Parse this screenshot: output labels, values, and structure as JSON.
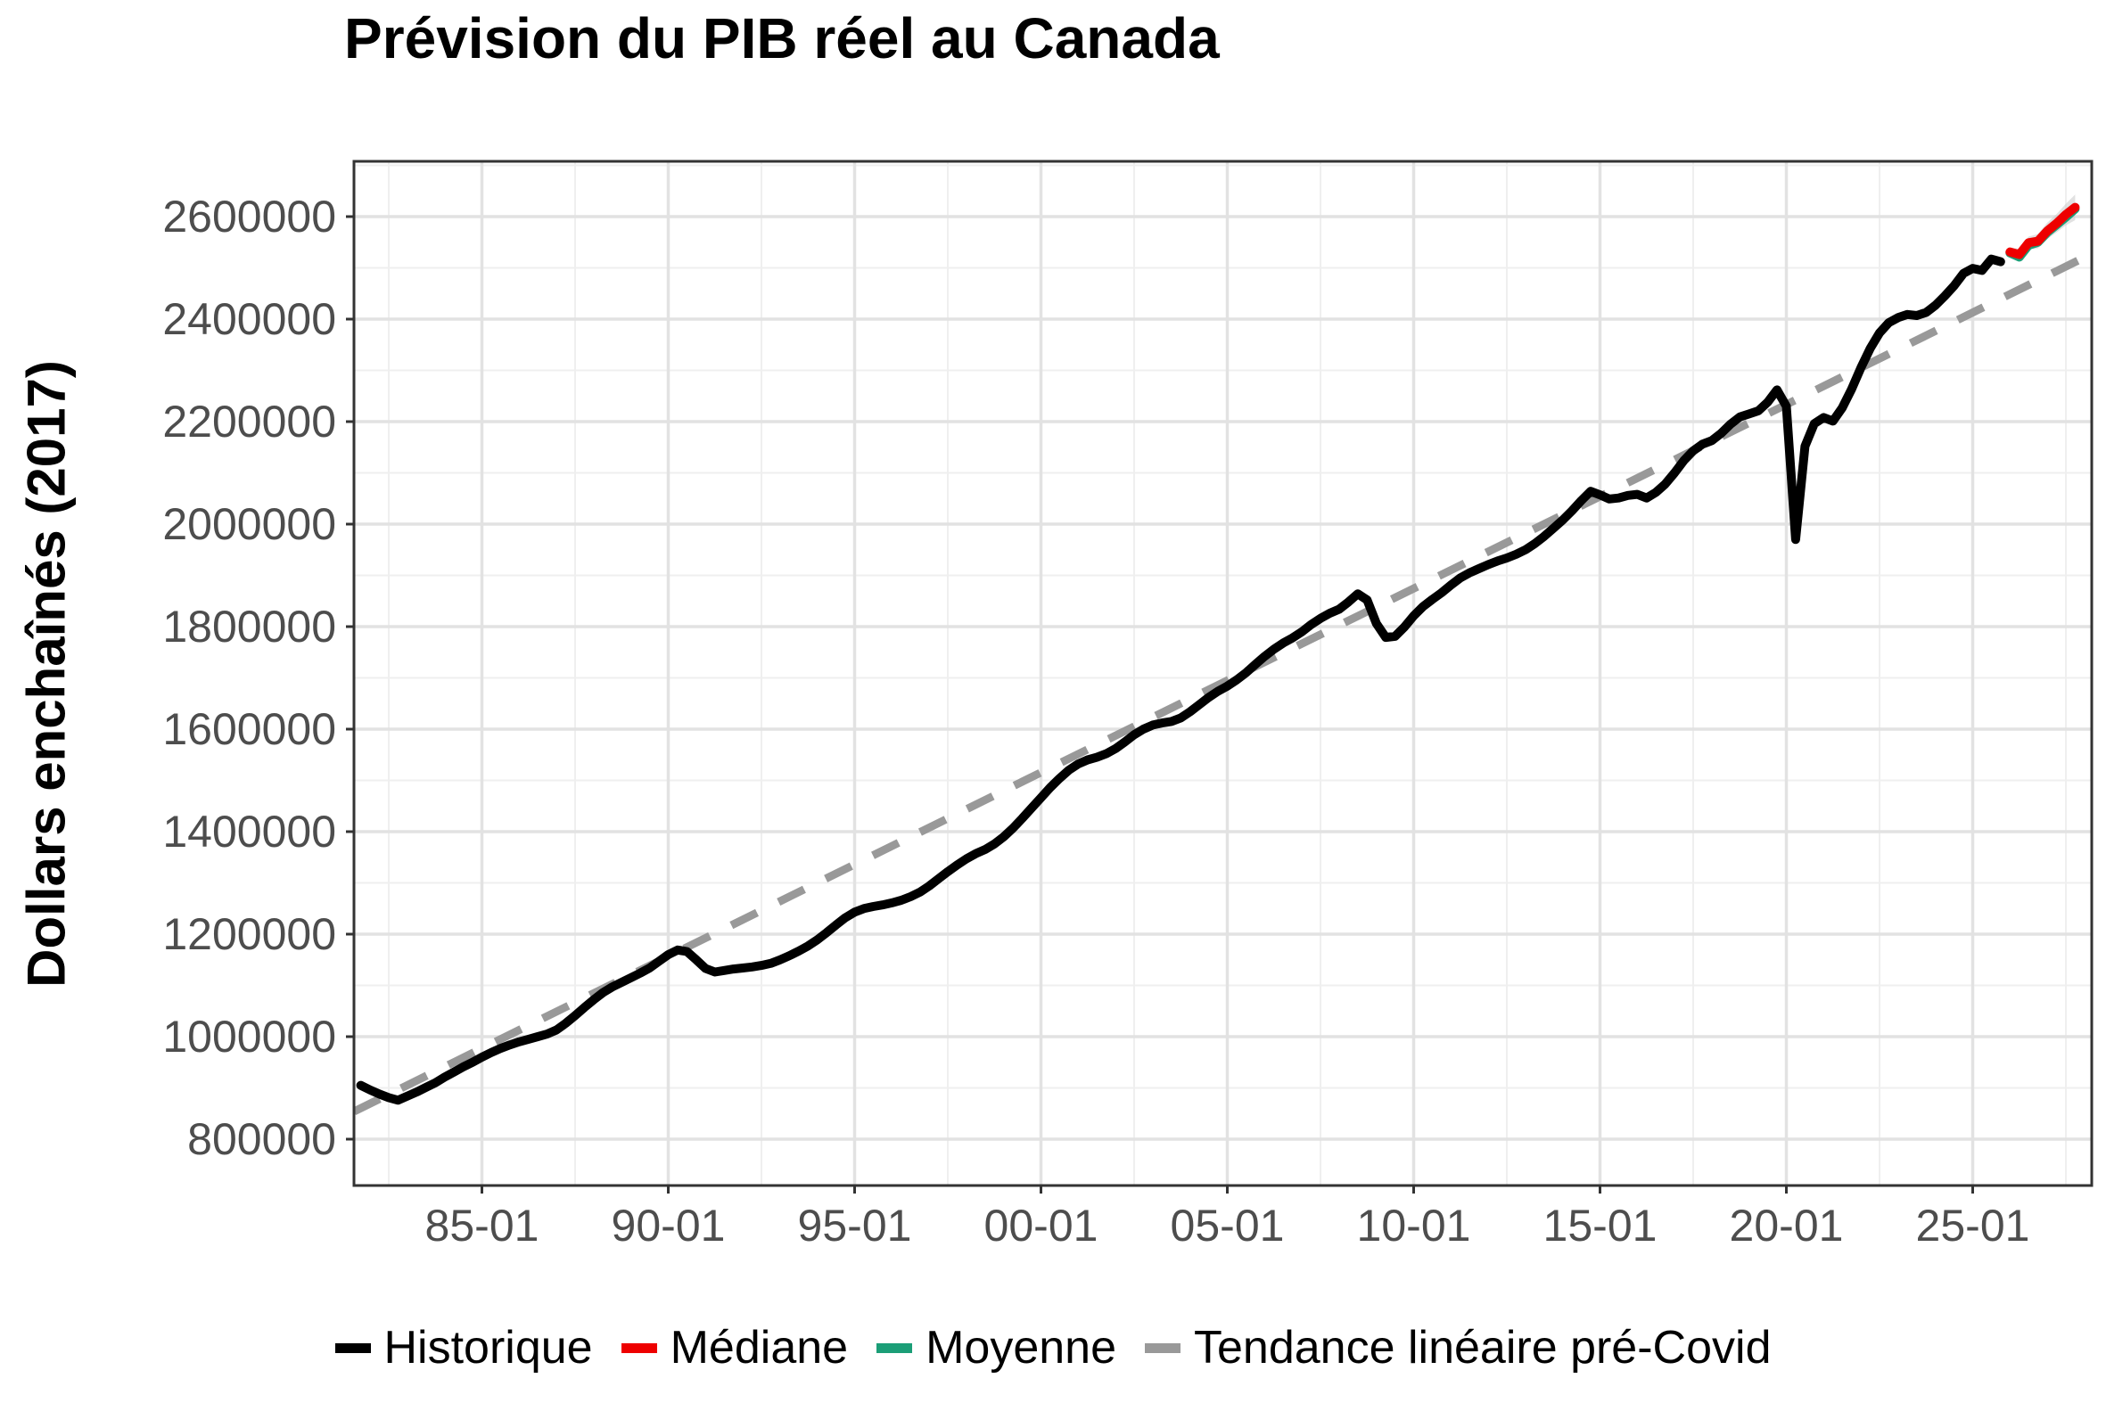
{
  "chart": {
    "title": "Prévision du PIB réel au Canada",
    "y_axis_title": "Dollars enchaînés (2017)",
    "colors": {
      "historical": "#000000",
      "median": "#EE0000",
      "mean": "#1B9E77",
      "trend": "#999999",
      "band": "#C9C9C9",
      "grid_major": "#E2E2E2",
      "grid_minor": "#EFEFEF",
      "panel_border": "#333333",
      "axis_text": "#4D4D4D"
    },
    "legend": {
      "items": [
        {
          "label": "Historique",
          "color": "#000000"
        },
        {
          "label": "Médiane",
          "color": "#EE0000"
        },
        {
          "label": "Moyenne",
          "color": "#1B9E77"
        },
        {
          "label": "Tendance linéaire pré-Covid",
          "color": "#999999"
        }
      ]
    }
  },
  "chart_data": {
    "type": "line",
    "title": "Prévision du PIB réel au Canada",
    "xlabel": "",
    "ylabel": "Dollars enchaînés (2017)",
    "xlim": [
      1981.55,
      2028.17
    ],
    "ylim": [
      701000,
      2699000
    ],
    "grid": "on",
    "legend_position": "bottom",
    "x_ticks": {
      "values": [
        1985,
        1990,
        1995,
        2000,
        2005,
        2010,
        2015,
        2020,
        2025
      ],
      "labels": [
        "85-01",
        "90-01",
        "95-01",
        "00-01",
        "05-01",
        "10-01",
        "15-01",
        "20-01",
        "25-01"
      ]
    },
    "y_ticks": {
      "values": [
        800000,
        1000000,
        1200000,
        1400000,
        1600000,
        1800000,
        2000000,
        2200000,
        2400000,
        2600000
      ],
      "labels": [
        "800000",
        "1000000",
        "1200000",
        "1400000",
        "1600000",
        "1800000",
        "2000000",
        "2200000",
        "2400000",
        "2600000"
      ]
    },
    "series": [
      {
        "name": "Historique",
        "color": "#000000",
        "style": "solid",
        "x_start": 1981.75,
        "x_step": 0.25,
        "values": [
          905000,
          896000,
          888000,
          881000,
          876000,
          884000,
          892000,
          901000,
          910000,
          921000,
          931000,
          941000,
          950000,
          960000,
          969000,
          977000,
          984000,
          990000,
          995000,
          1000000,
          1005000,
          1013000,
          1026000,
          1041000,
          1057000,
          1072000,
          1086000,
          1097000,
          1106000,
          1115000,
          1124000,
          1134000,
          1147000,
          1160000,
          1169000,
          1166000,
          1150000,
          1133000,
          1126000,
          1129000,
          1132000,
          1134000,
          1136000,
          1139000,
          1143000,
          1150000,
          1158000,
          1167000,
          1177000,
          1189000,
          1203000,
          1218000,
          1232000,
          1243000,
          1250000,
          1254000,
          1257000,
          1261000,
          1266000,
          1273000,
          1282000,
          1294000,
          1308000,
          1322000,
          1335000,
          1347000,
          1357000,
          1365000,
          1376000,
          1390000,
          1407000,
          1426000,
          1446000,
          1466000,
          1486000,
          1504000,
          1520000,
          1532000,
          1540000,
          1545000,
          1552000,
          1562000,
          1575000,
          1589000,
          1600000,
          1608000,
          1612000,
          1615000,
          1622000,
          1634000,
          1648000,
          1662000,
          1674000,
          1684000,
          1696000,
          1710000,
          1726000,
          1742000,
          1756000,
          1768000,
          1778000,
          1790000,
          1804000,
          1816000,
          1826000,
          1834000,
          1848000,
          1864000,
          1852000,
          1806000,
          1779000,
          1781000,
          1799000,
          1821000,
          1839000,
          1853000,
          1866000,
          1881000,
          1895000,
          1905000,
          1913000,
          1921000,
          1928000,
          1934000,
          1941000,
          1950000,
          1962000,
          1976000,
          1992000,
          2008000,
          2026000,
          2046000,
          2064000,
          2057000,
          2049000,
          2051000,
          2056000,
          2058000,
          2051000,
          2062000,
          2078000,
          2100000,
          2124000,
          2143000,
          2156000,
          2163000,
          2177000,
          2195000,
          2209000,
          2215000,
          2221000,
          2238000,
          2262000,
          2230000,
          1970000,
          2152000,
          2196000,
          2208000,
          2201000,
          2227000,
          2263000,
          2305000,
          2343000,
          2373000,
          2393000,
          2403000,
          2409000,
          2407000,
          2413000,
          2427000,
          2445000,
          2465000,
          2489000,
          2499000,
          2495000,
          2517000,
          2512000
        ]
      },
      {
        "name": "Médiane",
        "color": "#EE0000",
        "style": "solid",
        "x_start": 2026.0,
        "x_step": 0.25,
        "values": [
          2531000,
          2526000,
          2549000,
          2552000,
          2572000,
          2587000,
          2604000,
          2618000
        ]
      },
      {
        "name": "Moyenne",
        "color": "#1B9E77",
        "style": "solid",
        "x_start": 2026.0,
        "x_step": 0.25,
        "values": [
          2529000,
          2521000,
          2544000,
          2550000,
          2569000,
          2584000,
          2599000,
          2615000
        ]
      },
      {
        "name": "Tendance linéaire pré-Covid",
        "color": "#999999",
        "style": "dashed",
        "x": [
          1981.57,
          2028.15
        ],
        "values": [
          854000,
          2526000
        ]
      }
    ],
    "band": {
      "name": "intervalle-prévision",
      "x_start": 2026.0,
      "x_step": 0.25,
      "lower": [
        2522000,
        2515000,
        2537000,
        2538000,
        2556000,
        2569000,
        2583000,
        2593000
      ],
      "upper": [
        2540000,
        2537000,
        2561000,
        2566000,
        2588000,
        2605000,
        2625000,
        2643000
      ],
      "color": "#C9C9C9",
      "opacity": 0.55
    }
  }
}
